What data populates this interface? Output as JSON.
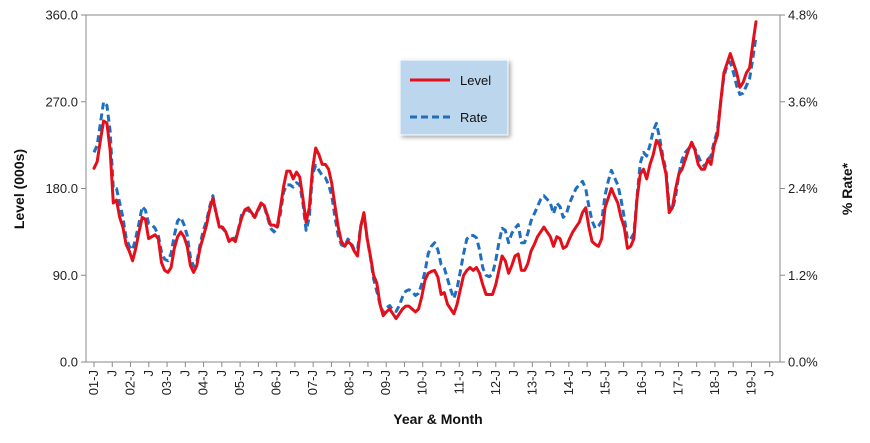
{
  "colors": {
    "level": "#e3101b",
    "rate": "#1f6fc0",
    "legend_fill": "#bcd6ee",
    "axis": "#8a8a8a"
  },
  "chart_data": {
    "type": "line",
    "xlabel": "Year & Month",
    "ylabel_left": "Level (000s)",
    "ylabel_right": "% Rate*",
    "ylim_left": [
      0,
      360
    ],
    "ylim_right": [
      0,
      4.8
    ],
    "y_ticks_left": [
      "0.0",
      "90.0",
      "180.0",
      "270.0",
      "360.0"
    ],
    "y_ticks_right": [
      "0.0%",
      "1.2%",
      "2.4%",
      "3.6%",
      "4.8%"
    ],
    "x_tick_labels": [
      "01-J",
      "J",
      "02-J",
      "J",
      "03-J",
      "J",
      "04-J",
      "J",
      "05-J",
      "J",
      "06-J",
      "J",
      "07-J",
      "J",
      "08-J",
      "J",
      "09-J",
      "J",
      "10-J",
      "J",
      "11-J",
      "J",
      "12-J",
      "J",
      "13-J",
      "J",
      "14-J",
      "J",
      "15-J",
      "J",
      "16-J",
      "J",
      "17-J",
      "J",
      "18-J",
      "J",
      "19-J",
      "J"
    ],
    "legend": [
      "Level",
      "Rate"
    ],
    "legend_position": "upper-center",
    "grid": false,
    "x_start": "2001-01",
    "series": [
      {
        "name": "Level",
        "axis": "left",
        "style": "solid",
        "values": [
          201,
          208,
          230,
          250,
          248,
          220,
          165,
          168,
          150,
          140,
          122,
          115,
          105,
          118,
          135,
          150,
          148,
          128,
          130,
          132,
          128,
          103,
          95,
          93,
          98,
          118,
          130,
          135,
          130,
          120,
          100,
          93,
          100,
          118,
          130,
          142,
          158,
          170,
          155,
          140,
          140,
          135,
          125,
          128,
          125,
          138,
          150,
          158,
          160,
          155,
          150,
          158,
          165,
          162,
          152,
          142,
          142,
          140,
          160,
          182,
          198,
          198,
          190,
          197,
          192,
          170,
          145,
          160,
          200,
          222,
          215,
          205,
          205,
          200,
          185,
          162,
          140,
          125,
          120,
          125,
          122,
          115,
          110,
          140,
          155,
          128,
          110,
          90,
          82,
          60,
          48,
          52,
          55,
          50,
          45,
          50,
          55,
          58,
          58,
          55,
          52,
          55,
          68,
          85,
          92,
          94,
          95,
          88,
          70,
          72,
          60,
          55,
          50,
          60,
          75,
          90,
          95,
          98,
          95,
          98,
          92,
          80,
          70,
          70,
          70,
          80,
          95,
          110,
          105,
          92,
          100,
          110,
          112,
          95,
          95,
          102,
          115,
          122,
          130,
          135,
          140,
          135,
          130,
          120,
          130,
          128,
          118,
          120,
          128,
          135,
          140,
          145,
          155,
          160,
          140,
          125,
          122,
          120,
          128,
          160,
          170,
          180,
          172,
          165,
          150,
          140,
          118,
          120,
          128,
          170,
          195,
          200,
          190,
          205,
          215,
          230,
          225,
          210,
          195,
          155,
          160,
          180,
          195,
          200,
          210,
          220,
          228,
          220,
          205,
          200,
          200,
          210,
          205,
          225,
          235,
          270,
          300,
          310,
          320,
          310,
          300,
          285,
          290,
          300,
          305,
          330,
          353
        ]
      },
      {
        "name": "Rate",
        "axis": "right",
        "style": "dashed",
        "values": [
          2.9,
          3.0,
          3.3,
          3.6,
          3.55,
          3.2,
          2.4,
          2.4,
          2.2,
          2.0,
          1.72,
          1.6,
          1.55,
          1.72,
          1.92,
          2.15,
          2.1,
          1.92,
          1.9,
          1.85,
          1.75,
          1.52,
          1.42,
          1.4,
          1.5,
          1.75,
          1.95,
          2.0,
          1.9,
          1.75,
          1.45,
          1.32,
          1.38,
          1.62,
          1.82,
          1.95,
          2.15,
          2.3,
          2.05,
          1.9,
          1.85,
          1.8,
          1.68,
          1.72,
          1.7,
          1.85,
          2.05,
          2.1,
          2.1,
          2.05,
          2.0,
          2.08,
          2.18,
          2.15,
          2.0,
          1.85,
          1.8,
          1.85,
          2.05,
          2.35,
          2.45,
          2.45,
          2.42,
          2.48,
          2.45,
          2.2,
          1.82,
          2.0,
          2.6,
          2.72,
          2.65,
          2.58,
          2.55,
          2.45,
          2.3,
          2.0,
          1.75,
          1.62,
          1.6,
          1.7,
          1.65,
          1.55,
          1.55,
          1.88,
          2.05,
          1.7,
          1.45,
          1.15,
          0.98,
          0.8,
          0.68,
          0.75,
          0.78,
          0.72,
          0.7,
          0.78,
          0.9,
          0.98,
          1.0,
          0.98,
          0.92,
          0.95,
          1.08,
          1.25,
          1.5,
          1.6,
          1.65,
          1.55,
          1.35,
          1.3,
          1.15,
          1.0,
          0.88,
          1.02,
          1.25,
          1.5,
          1.7,
          1.75,
          1.75,
          1.72,
          1.55,
          1.3,
          1.2,
          1.18,
          1.22,
          1.4,
          1.65,
          1.85,
          1.82,
          1.65,
          1.78,
          1.85,
          1.9,
          1.65,
          1.65,
          1.78,
          1.95,
          2.05,
          2.15,
          2.25,
          2.3,
          2.25,
          2.2,
          2.05,
          2.2,
          2.15,
          2.0,
          2.05,
          2.2,
          2.3,
          2.4,
          2.45,
          2.5,
          2.4,
          2.15,
          1.95,
          1.85,
          1.88,
          1.95,
          2.3,
          2.5,
          2.65,
          2.55,
          2.45,
          2.25,
          2.0,
          1.7,
          1.7,
          1.78,
          2.3,
          2.75,
          2.9,
          2.85,
          3.0,
          3.2,
          3.3,
          3.1,
          2.85,
          2.65,
          2.15,
          2.1,
          2.3,
          2.6,
          2.8,
          2.9,
          2.95,
          3.0,
          2.95,
          2.85,
          2.75,
          2.7,
          2.8,
          2.85,
          3.05,
          3.2,
          3.6,
          3.95,
          4.1,
          4.15,
          4.0,
          3.82,
          3.7,
          3.72,
          3.82,
          3.92,
          4.2,
          4.5
        ]
      }
    ]
  }
}
